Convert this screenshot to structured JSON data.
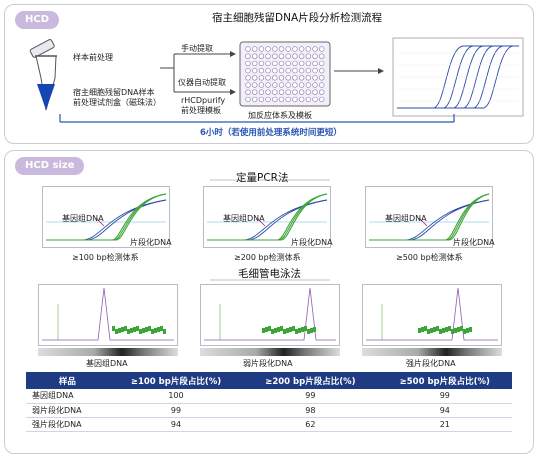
{
  "top": {
    "tag": "HCD",
    "title": "宿主细胞残留DNA片段分析检测流程",
    "sample_pre": "样本前处理",
    "kit_line1": "宿主细胞残留DNA样本",
    "kit_line2": "前处理试剂盒（磁珠法）",
    "manual": "手动提取",
    "auto": "仪器自动提取",
    "purify_line1": "rHCDpurify",
    "purify_line2": "前处理模板",
    "plate_caption": "加反应体系及模板",
    "time_note": "6小时（若使用前处理系统时间更短）"
  },
  "bottom": {
    "tag": "HCD size",
    "pcr_title": "定量PCR法",
    "ce_title": "毛细管电泳法",
    "pcr_plots": [
      {
        "genomic": "基因组DNA",
        "fragment": "片段化DNA",
        "caption": "≥100 bp检测体系"
      },
      {
        "genomic": "基因组DNA",
        "fragment": "片段化DNA",
        "caption": "≥200 bp检测体系"
      },
      {
        "genomic": "基因组DNA",
        "fragment": "片段化DNA",
        "caption": "≥500 bp检测体系"
      }
    ],
    "ce_plots": [
      {
        "caption": "基因组DNA"
      },
      {
        "caption": "弱片段化DNA"
      },
      {
        "caption": "强片段化DNA"
      }
    ]
  },
  "table": {
    "headers": [
      "样品",
      "≥100 bp片段占比(%)",
      "≥200 bp片段占比(%)",
      "≥500 bp片段占比(%)"
    ],
    "rows": [
      [
        "基因组DNA",
        "100",
        "99",
        "99"
      ],
      [
        "弱片段化DNA",
        "99",
        "98",
        "94"
      ],
      [
        "强片段化DNA",
        "94",
        "62",
        "21"
      ]
    ]
  },
  "colors": {
    "accent_blue": "#2a56b5",
    "tag_purple": "#c9b9dd",
    "table_header": "#1f3b84",
    "curve_green": "#3da63a",
    "curve_blue": "#2b4fa8",
    "tube_blue": "#1546b4"
  }
}
